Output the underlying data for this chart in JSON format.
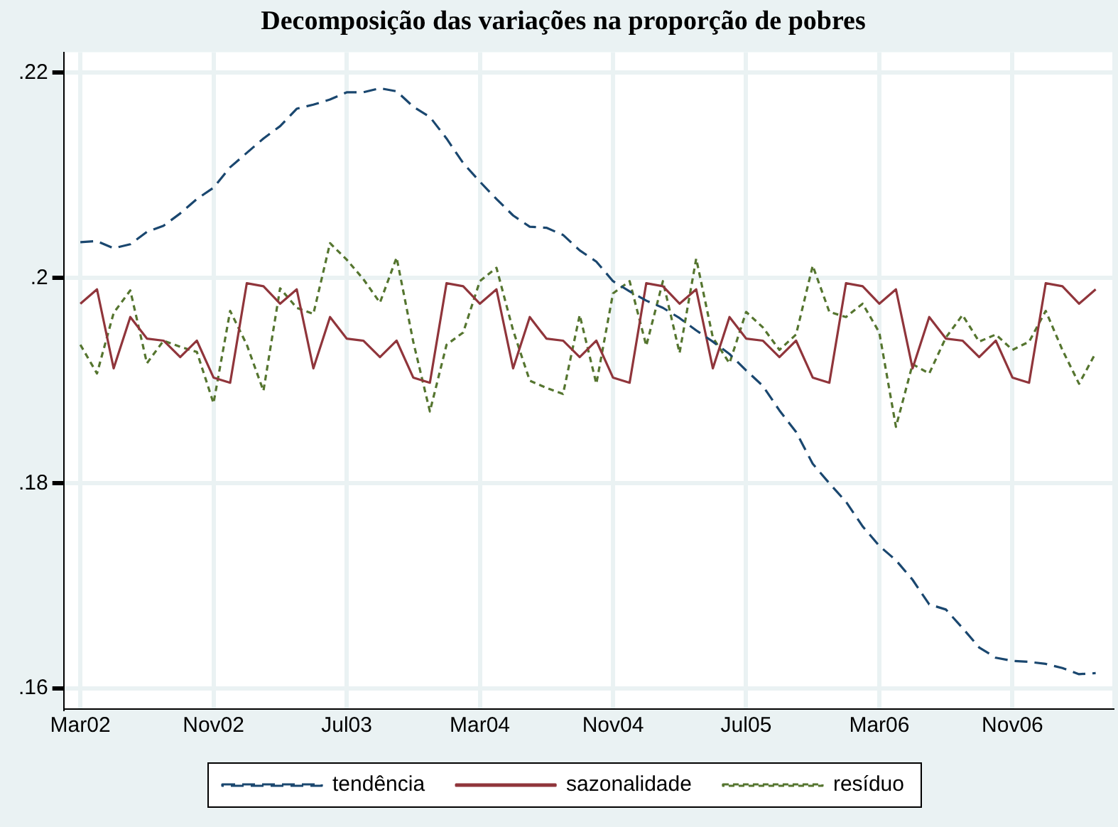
{
  "chart_data": {
    "type": "line",
    "title": "Decomposição das variações na proporção de pobres",
    "x": [
      "2002-03",
      "2002-04",
      "2002-05",
      "2002-06",
      "2002-07",
      "2002-08",
      "2002-09",
      "2002-10",
      "2002-11",
      "2002-12",
      "2003-01",
      "2003-02",
      "2003-03",
      "2003-04",
      "2003-05",
      "2003-06",
      "2003-07",
      "2003-08",
      "2003-09",
      "2003-10",
      "2003-11",
      "2003-12",
      "2004-01",
      "2004-02",
      "2004-03",
      "2004-04",
      "2004-05",
      "2004-06",
      "2004-07",
      "2004-08",
      "2004-09",
      "2004-10",
      "2004-11",
      "2004-12",
      "2005-01",
      "2005-02",
      "2005-03",
      "2005-04",
      "2005-05",
      "2005-06",
      "2005-07",
      "2005-08",
      "2005-09",
      "2005-10",
      "2005-11",
      "2005-12",
      "2006-01",
      "2006-02",
      "2006-03",
      "2006-04",
      "2006-05",
      "2006-06",
      "2006-07",
      "2006-08",
      "2006-09",
      "2006-10",
      "2006-11",
      "2006-12",
      "2007-01",
      "2007-02",
      "2007-03",
      "2007-04"
    ],
    "series": [
      {
        "name": "tendência",
        "color": "#1a476f",
        "line_style": "dashed",
        "values": [
          0.2035,
          0.2036,
          0.2029,
          0.2033,
          0.2045,
          0.2051,
          0.2063,
          0.2077,
          0.2088,
          0.2108,
          0.2122,
          0.2136,
          0.2148,
          0.2165,
          0.2169,
          0.2174,
          0.2181,
          0.2181,
          0.2185,
          0.2182,
          0.2167,
          0.2157,
          0.2136,
          0.2112,
          0.2094,
          0.2077,
          0.2061,
          0.205,
          0.2049,
          0.2042,
          0.2027,
          0.2016,
          0.1997,
          0.1987,
          0.1978,
          0.1971,
          0.1961,
          0.1949,
          0.1938,
          0.1926,
          0.191,
          0.1895,
          0.1871,
          0.185,
          0.1819,
          0.18,
          0.1782,
          0.1758,
          0.1739,
          0.1725,
          0.1706,
          0.1682,
          0.1677,
          0.1659,
          0.164,
          0.163,
          0.1627,
          0.1626,
          0.1624,
          0.162,
          0.1614,
          0.1615
        ]
      },
      {
        "name": "sazonalidade",
        "color": "#90353b",
        "line_style": "solid",
        "values": [
          0.1975,
          0.1989,
          0.1912,
          0.1962,
          0.1941,
          0.1939,
          0.1923,
          0.1939,
          0.1903,
          0.1898,
          0.1995,
          0.1992,
          0.1975,
          0.1989,
          0.1912,
          0.1962,
          0.1941,
          0.1939,
          0.1923,
          0.1939,
          0.1903,
          0.1898,
          0.1995,
          0.1992,
          0.1975,
          0.1989,
          0.1912,
          0.1962,
          0.1941,
          0.1939,
          0.1923,
          0.1939,
          0.1903,
          0.1898,
          0.1995,
          0.1992,
          0.1975,
          0.1989,
          0.1912,
          0.1962,
          0.1941,
          0.1939,
          0.1923,
          0.1939,
          0.1903,
          0.1898,
          0.1995,
          0.1992,
          0.1975,
          0.1989,
          0.1912,
          0.1962,
          0.1941,
          0.1939,
          0.1923,
          0.1939,
          0.1903,
          0.1898,
          0.1995,
          0.1992,
          0.1975,
          0.1989
        ]
      },
      {
        "name": "resíduo",
        "color": "#55752f",
        "line_style": "dotted",
        "values": [
          0.1935,
          0.1907,
          0.1966,
          0.1988,
          0.1917,
          0.1939,
          0.1933,
          0.1928,
          0.1878,
          0.1968,
          0.1935,
          0.189,
          0.199,
          0.1971,
          0.1965,
          0.2034,
          0.2018,
          0.1999,
          0.1976,
          0.202,
          0.1938,
          0.187,
          0.1935,
          0.1947,
          0.1997,
          0.201,
          0.1949,
          0.19,
          0.1893,
          0.1887,
          0.1964,
          0.1897,
          0.1985,
          0.1997,
          0.1934,
          0.1997,
          0.1927,
          0.2019,
          0.1942,
          0.1917,
          0.1967,
          0.1952,
          0.193,
          0.1945,
          0.2012,
          0.1967,
          0.1962,
          0.1975,
          0.1947,
          0.1855,
          0.1916,
          0.1907,
          0.1942,
          0.1964,
          0.1938,
          0.1945,
          0.193,
          0.1938,
          0.1968,
          0.193,
          0.1897,
          0.1927
        ]
      }
    ],
    "xlim": [
      "2002-02",
      "2007-05"
    ],
    "xticks": [
      {
        "value": "2002-03",
        "label": "Mar02"
      },
      {
        "value": "2002-11",
        "label": "Nov02"
      },
      {
        "value": "2003-07",
        "label": "Jul03"
      },
      {
        "value": "2004-03",
        "label": "Mar04"
      },
      {
        "value": "2004-11",
        "label": "Nov04"
      },
      {
        "value": "2005-07",
        "label": "Jul05"
      },
      {
        "value": "2006-03",
        "label": "Mar06"
      },
      {
        "value": "2006-11",
        "label": "Nov06"
      }
    ],
    "ylim": [
      0.158,
      0.222
    ],
    "yticks": [
      {
        "value": 0.16,
        "label": ".16"
      },
      {
        "value": 0.18,
        "label": ".18"
      },
      {
        "value": 0.2,
        "label": ".2"
      },
      {
        "value": 0.22,
        "label": ".22"
      }
    ],
    "grid": true,
    "legend": "bottom",
    "marker": "none"
  }
}
